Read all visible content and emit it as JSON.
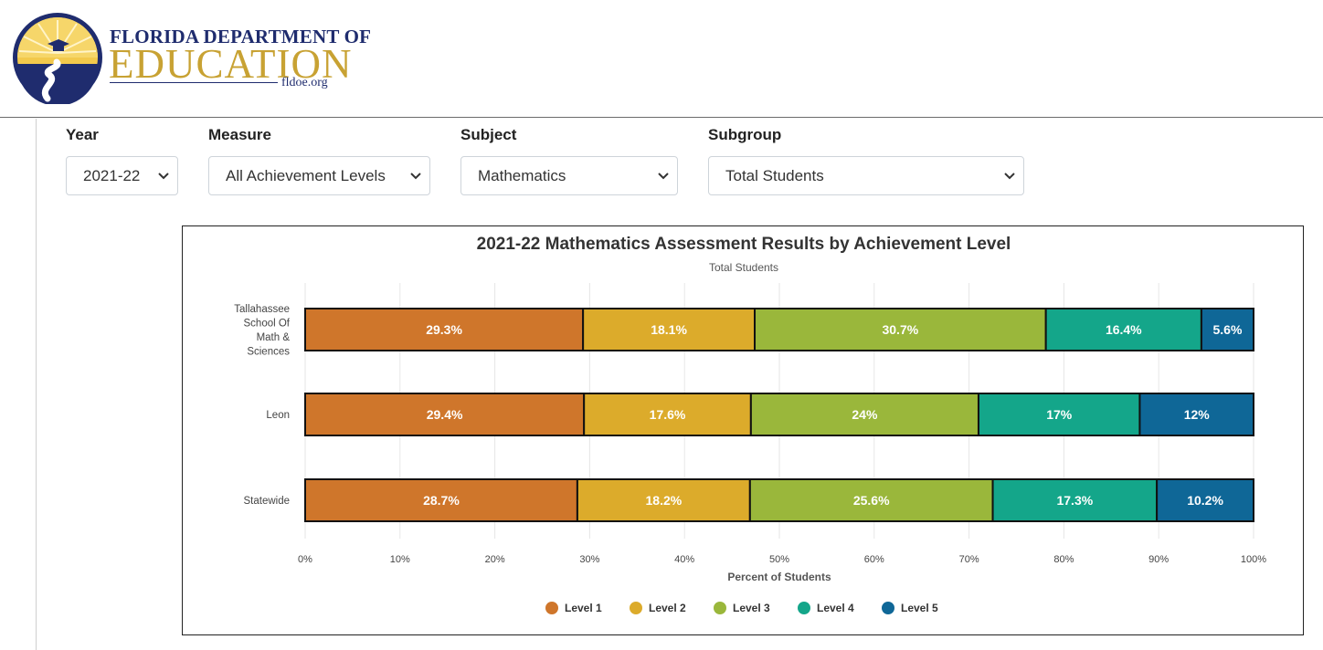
{
  "header": {
    "logo_line1": "FLORIDA DEPARTMENT OF",
    "logo_line2": "EDUCATION",
    "logo_url": "fldoe.org"
  },
  "filters": [
    {
      "label": "Year",
      "value": "2021-22"
    },
    {
      "label": "Measure",
      "value": "All Achievement Levels"
    },
    {
      "label": "Subject",
      "value": "Mathematics"
    },
    {
      "label": "Subgroup",
      "value": "Total Students"
    }
  ],
  "colors": {
    "level1": "#cf762b",
    "level2": "#dcab2b",
    "level3": "#9ab73b",
    "level4": "#14a68a",
    "level5": "#0f6797"
  },
  "chart_data": {
    "type": "bar",
    "orientation": "horizontal",
    "stacked": true,
    "title": "2021-22 Mathematics Assessment Results by Achievement Level",
    "subtitle": "Total Students",
    "xlabel": "Percent of Students",
    "ylabel": "",
    "xlim": [
      0,
      100
    ],
    "x_ticks": [
      "0%",
      "10%",
      "20%",
      "30%",
      "40%",
      "50%",
      "60%",
      "70%",
      "80%",
      "90%",
      "100%"
    ],
    "categories": [
      [
        "Tallahassee",
        "School Of",
        "Math &",
        "Sciences"
      ],
      [
        "Leon"
      ],
      [
        "Statewide"
      ]
    ],
    "series": [
      {
        "name": "Level 1",
        "color": "#cf762b",
        "values": [
          29.3,
          29.4,
          28.7
        ],
        "labels": [
          "29.3%",
          "29.4%",
          "28.7%"
        ]
      },
      {
        "name": "Level 2",
        "color": "#dcab2b",
        "values": [
          18.1,
          17.6,
          18.2
        ],
        "labels": [
          "18.1%",
          "17.6%",
          "18.2%"
        ]
      },
      {
        "name": "Level 3",
        "color": "#9ab73b",
        "values": [
          30.7,
          24,
          25.6
        ],
        "labels": [
          "30.7%",
          "24%",
          "25.6%"
        ]
      },
      {
        "name": "Level 4",
        "color": "#14a68a",
        "values": [
          16.4,
          17,
          17.3
        ],
        "labels": [
          "16.4%",
          "17%",
          "17.3%"
        ]
      },
      {
        "name": "Level 5",
        "color": "#0f6797",
        "values": [
          5.6,
          12,
          10.2
        ],
        "labels": [
          "5.6%",
          "12%",
          "10.2%"
        ]
      }
    ],
    "grid": true,
    "legend_position": "bottom-center"
  }
}
